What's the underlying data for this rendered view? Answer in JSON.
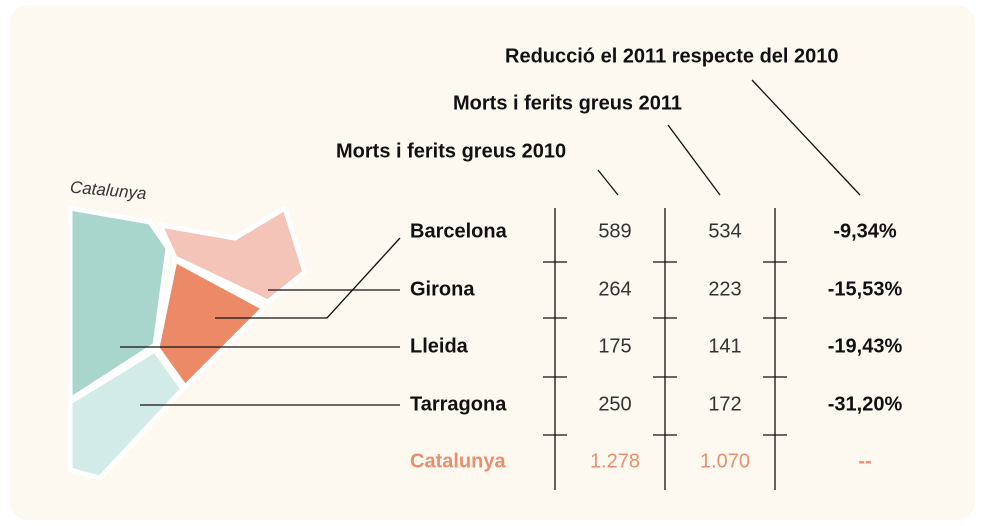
{
  "map_label": "Catalunya",
  "headers": [
    "Morts i ferits greus 2010",
    "Morts i ferits greus 2011",
    "Reducció el 2011 respecte del 2010"
  ],
  "rows": [
    [
      "Barcelona",
      "589",
      "534",
      "-9,34%"
    ],
    [
      "Girona",
      "264",
      "223",
      "-15,53%"
    ],
    [
      "Lleida",
      "175",
      "141",
      "-19,43%"
    ],
    [
      "Tarragona",
      "250",
      "172",
      "-31,20%"
    ]
  ],
  "total": [
    "Catalunya",
    "1.278",
    "1.070",
    "--"
  ]
}
